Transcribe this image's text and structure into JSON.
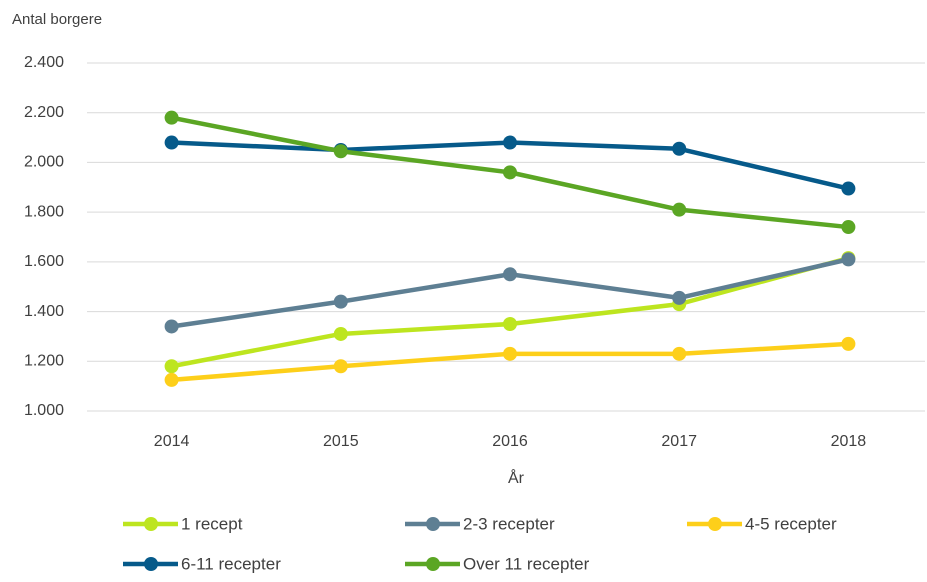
{
  "chart_data": {
    "type": "line",
    "y_axis_title": "Antal borgere",
    "x_axis_title": "År",
    "categories": [
      "2014",
      "2015",
      "2016",
      "2017",
      "2018"
    ],
    "series": [
      {
        "name": "1 recept",
        "color": "#bde51f",
        "values": [
          1180,
          1310,
          1350,
          1430,
          1615
        ]
      },
      {
        "name": "2-3 recepter",
        "color": "#5e7f93",
        "values": [
          1340,
          1440,
          1550,
          1455,
          1610
        ]
      },
      {
        "name": "4-5 recepter",
        "color": "#fdcf1a",
        "values": [
          1125,
          1180,
          1230,
          1230,
          1270
        ]
      },
      {
        "name": "6-11 recepter",
        "color": "#065a8a",
        "values": [
          2080,
          2050,
          2080,
          2055,
          1895
        ]
      },
      {
        "name": "Over 11 recepter",
        "color": "#5ba624",
        "values": [
          2180,
          2045,
          1960,
          1810,
          1740
        ]
      }
    ],
    "ylim": [
      1000,
      2400
    ],
    "yticks": [
      {
        "value": 1000,
        "label": "1.000"
      },
      {
        "value": 1200,
        "label": "1.200"
      },
      {
        "value": 1400,
        "label": "1.400"
      },
      {
        "value": 1600,
        "label": "1.600"
      },
      {
        "value": 1800,
        "label": "1.800"
      },
      {
        "value": 2000,
        "label": "2.000"
      },
      {
        "value": 2200,
        "label": "2.200"
      },
      {
        "value": 2400,
        "label": "2.400"
      }
    ],
    "grid": true
  }
}
